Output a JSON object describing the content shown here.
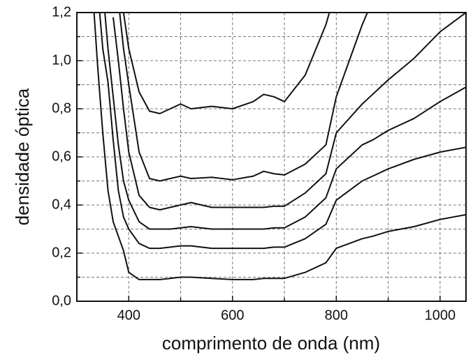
{
  "chart_data": {
    "type": "line",
    "xlabel": "comprimento de onda (nm)",
    "ylabel": "densidade óptica",
    "xlim": [
      300,
      1050
    ],
    "ylim": [
      0,
      1.2
    ],
    "xticks": [
      400,
      600,
      800,
      1000
    ],
    "xminorticks": [
      500,
      700,
      900
    ],
    "yticks": [
      {
        "value": 0,
        "label": "0,0"
      },
      {
        "value": 0.2,
        "label": "0,2"
      },
      {
        "value": 0.4,
        "label": "0,4"
      },
      {
        "value": 0.6,
        "label": "0,6"
      },
      {
        "value": 0.8,
        "label": "0,8"
      },
      {
        "value": 1.0,
        "label": "1,0"
      },
      {
        "value": 1.2,
        "label": "1,2"
      }
    ],
    "yminorticks": [
      0.1,
      0.3,
      0.5,
      0.7,
      0.9,
      1.1
    ],
    "grid": true,
    "x": [
      330,
      340,
      350,
      360,
      370,
      380,
      390,
      400,
      420,
      440,
      460,
      480,
      500,
      520,
      560,
      600,
      640,
      660,
      680,
      700,
      740,
      780,
      800,
      850,
      870,
      900,
      950,
      1000,
      1050
    ],
    "series": [
      {
        "color": "#111111",
        "values": [
          1.3,
          0.98,
          0.7,
          0.46,
          0.33,
          0.27,
          0.21,
          0.12,
          0.09,
          0.09,
          0.09,
          0.095,
          0.1,
          0.1,
          0.095,
          0.09,
          0.09,
          0.095,
          0.095,
          0.095,
          0.12,
          0.16,
          0.22,
          0.26,
          0.27,
          0.29,
          0.31,
          0.34,
          0.36
        ]
      },
      {
        "color": "#111111",
        "values": [
          null,
          1.3,
          1.05,
          0.91,
          0.67,
          0.46,
          0.35,
          0.3,
          0.24,
          0.22,
          0.22,
          0.225,
          0.23,
          0.23,
          0.22,
          0.22,
          0.22,
          0.22,
          0.225,
          0.225,
          0.26,
          0.32,
          0.42,
          0.5,
          0.52,
          0.55,
          0.59,
          0.62,
          0.64
        ]
      },
      {
        "color": "#111111",
        "values": [
          null,
          null,
          1.3,
          1.05,
          0.85,
          0.65,
          0.5,
          0.42,
          0.33,
          0.3,
          0.3,
          0.3,
          0.305,
          0.31,
          0.3,
          0.3,
          0.3,
          0.3,
          0.305,
          0.305,
          0.35,
          0.43,
          0.55,
          0.65,
          0.67,
          0.71,
          0.76,
          0.83,
          0.89
        ]
      },
      {
        "color": "#111111",
        "values": [
          null,
          null,
          null,
          null,
          1.18,
          1.0,
          0.8,
          0.62,
          0.44,
          0.39,
          0.38,
          0.39,
          0.4,
          0.41,
          0.39,
          0.39,
          0.39,
          0.39,
          0.395,
          0.395,
          0.45,
          0.53,
          0.7,
          0.82,
          0.86,
          0.92,
          1.01,
          1.12,
          1.2
        ]
      },
      {
        "color": "#111111",
        "values": [
          null,
          null,
          null,
          null,
          null,
          1.25,
          1.05,
          0.9,
          0.62,
          0.51,
          0.5,
          0.51,
          0.52,
          0.51,
          0.515,
          0.505,
          0.52,
          0.54,
          0.53,
          0.525,
          0.57,
          0.65,
          0.85,
          1.15,
          1.25,
          null,
          null,
          null,
          null
        ]
      },
      {
        "color": "#111111",
        "values": [
          null,
          null,
          null,
          null,
          null,
          null,
          1.2,
          1.05,
          0.87,
          0.79,
          0.78,
          0.8,
          0.82,
          0.8,
          0.81,
          0.8,
          0.83,
          0.86,
          0.85,
          0.83,
          0.94,
          1.15,
          1.3,
          null,
          null,
          null,
          null,
          null,
          null
        ]
      }
    ]
  }
}
